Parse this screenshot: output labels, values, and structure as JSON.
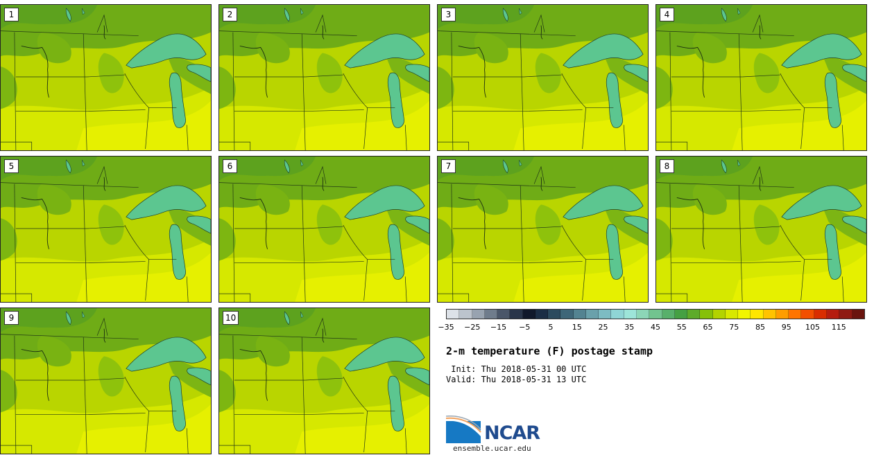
{
  "panels": [
    {
      "label": "1"
    },
    {
      "label": "2"
    },
    {
      "label": "3"
    },
    {
      "label": "4"
    },
    {
      "label": "5"
    },
    {
      "label": "6"
    },
    {
      "label": "7"
    },
    {
      "label": "8"
    },
    {
      "label": "9"
    },
    {
      "label": "10"
    }
  ],
  "colorbar": {
    "colors": [
      "#dde2e8",
      "#bcc4cd",
      "#98a3b0",
      "#6f7c8c",
      "#4a5669",
      "#29354a",
      "#10182b",
      "#1b2d45",
      "#2c4a5e",
      "#3e6678",
      "#538391",
      "#6aa1ab",
      "#7dbcc3",
      "#8fd5d5",
      "#9de5d9",
      "#8cd6b7",
      "#72c48f",
      "#58b06b",
      "#45a043",
      "#5eab2a",
      "#86c009",
      "#b3d300",
      "#d8e800",
      "#f2f500",
      "#ffe600",
      "#ffc300",
      "#ff9d00",
      "#ff7400",
      "#f24f00",
      "#d92d00",
      "#b51d0f",
      "#8f1a12",
      "#6a140e"
    ],
    "tick_labels": [
      "−35",
      "−25",
      "−15",
      "−5",
      "5",
      "15",
      "25",
      "35",
      "45",
      "55",
      "65",
      "75",
      "85",
      "95",
      "105",
      "115"
    ]
  },
  "title": "2-m temperature (F) postage stamp",
  "init_text": " Init: Thu 2018-05-31 00 UTC",
  "valid_text": "Valid: Thu 2018-05-31 13 UTC",
  "logo_text": "NCAR",
  "url_text": "ensemble.ucar.edu"
}
